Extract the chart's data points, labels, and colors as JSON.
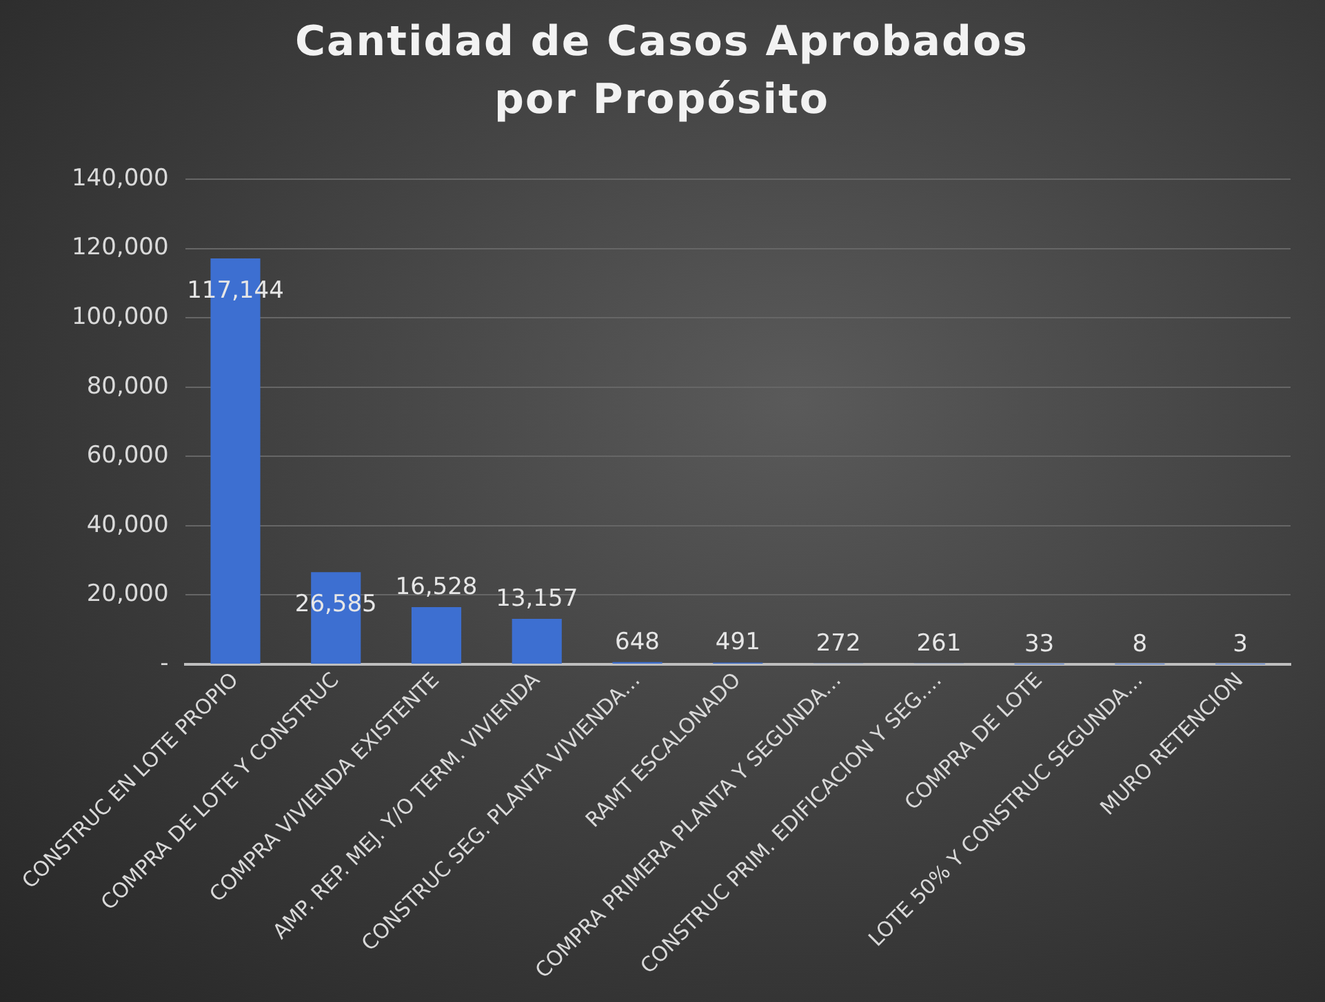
{
  "chart_data": {
    "type": "bar",
    "title": "Cantidad de Casos Aprobados por Propósito",
    "categories": [
      "CONSTRUC EN LOTE PROPIO",
      "COMPRA DE LOTE Y CONSTRUC",
      "COMPRA VIVIENDA EXISTENTE",
      "AMP. REP. MEJ. Y/O TERM. VIVIENDA",
      "CONSTRUC SEG. PLANTA VIVIENDA…",
      "RAMT ESCALONADO",
      "COMPRA PRIMERA PLANTA Y SEGUNDA…",
      "CONSTRUC PRIM. EDIFICACION Y SEG.…",
      "COMPRA DE LOTE",
      "LOTE 50% Y CONSTRUC SEGUNDA…",
      "MURO RETENCION"
    ],
    "values": [
      117144,
      26585,
      16528,
      13157,
      648,
      491,
      272,
      261,
      33,
      8,
      3
    ],
    "value_labels": [
      "117,144",
      "26,585",
      "16,528",
      "13,157",
      "648",
      "491",
      "272",
      "261",
      "33",
      "8",
      "3"
    ],
    "color": "#3d6fd1",
    "ylim": [
      0,
      140000
    ],
    "yticks": [
      {
        "value": 0,
        "label": "-"
      },
      {
        "value": 20000,
        "label": "20,000"
      },
      {
        "value": 40000,
        "label": "40,000"
      },
      {
        "value": 60000,
        "label": "60,000"
      },
      {
        "value": 80000,
        "label": "80,000"
      },
      {
        "value": 100000,
        "label": "100,000"
      },
      {
        "value": 120000,
        "label": "120,000"
      },
      {
        "value": 140000,
        "label": "140,000"
      }
    ],
    "grid": "y",
    "legend": false
  }
}
